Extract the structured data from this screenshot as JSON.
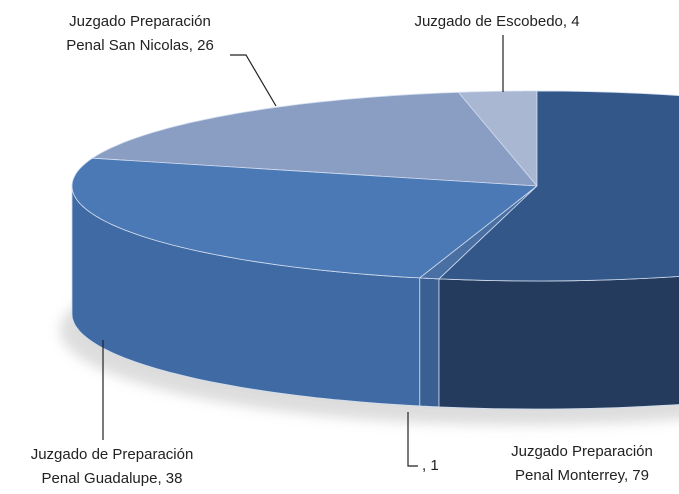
{
  "chart_data": {
    "type": "pie3d",
    "categories": [
      "Juzgado de Escobedo",
      "Juzgado Preparación Penal San Nicolas",
      "Juzgado de Preparación Penal Guadalupe",
      null,
      "Juzgado Preparación Penal Monterrey"
    ],
    "values": [
      4,
      26,
      38,
      1,
      79
    ],
    "value_labels": [
      [
        "Juzgado de Escobedo, 4"
      ],
      [
        "Juzgado Preparación",
        "Penal San Nicolas, 26"
      ],
      [
        "Juzgado de Preparación",
        "Penal Guadalupe, 38"
      ],
      [
        ", 1"
      ],
      [
        "Juzgado Preparación",
        "Penal Monterrey, 79"
      ]
    ],
    "colors": [
      "#a9b7d2",
      "#8a9dc3",
      "#4a79b5",
      "#4a70a3",
      "#34578a"
    ],
    "side_colors": [
      "#8f9fbf",
      "#6f84ad",
      "#3f6aa3",
      "#3a5f92",
      "#253b5d"
    ]
  }
}
